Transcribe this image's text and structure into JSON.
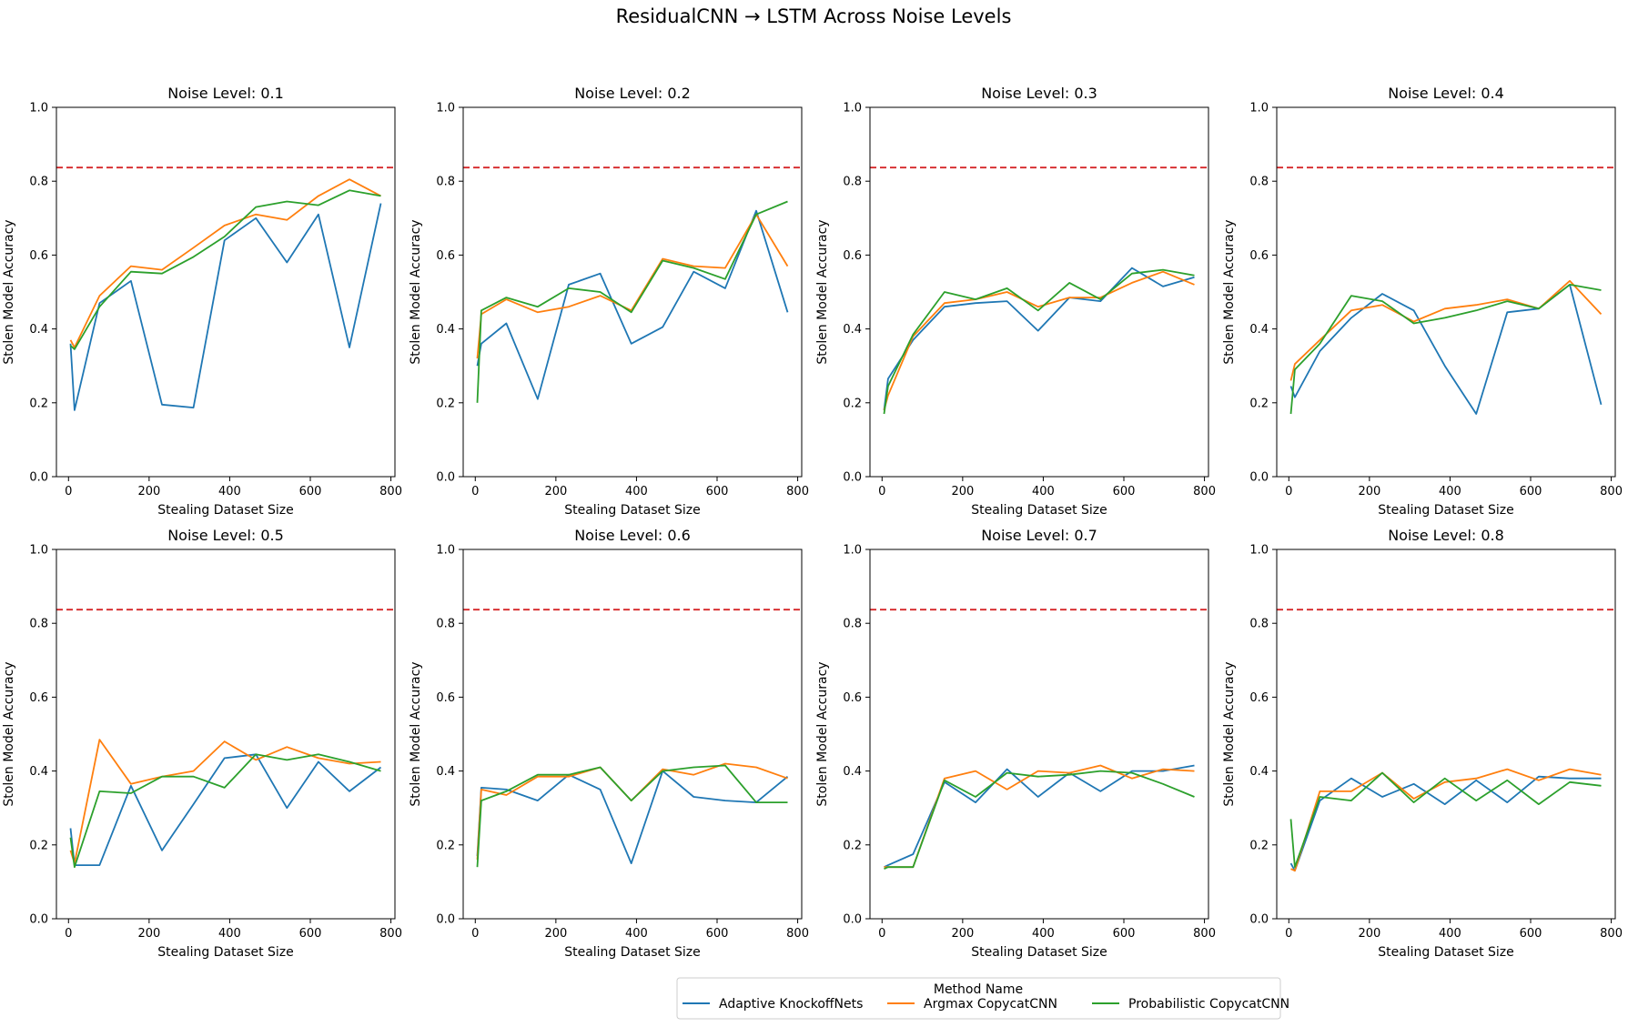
{
  "figure": {
    "title": "ResidualCNN → LSTM Across Noise Levels",
    "legend_title": "Method Name",
    "legend_position": "bottom-center"
  },
  "colors": {
    "Adaptive KnockoffNets": "#1f77b4",
    "Argmax CopycatCNN": "#ff7f0e",
    "Probabilistic CopycatCNN": "#2ca02c",
    "reference_line": "#d62728"
  },
  "chart_data": [
    {
      "type": "line",
      "title": "Noise Level: 0.1",
      "xlabel": "Stealing Dataset Size",
      "ylabel": "Stolen Model Accuracy",
      "xlim": [
        -30,
        810
      ],
      "ylim": [
        0.0,
        1.0
      ],
      "xticks": [
        0,
        200,
        400,
        600,
        800
      ],
      "yticks": [
        0.0,
        0.2,
        0.4,
        0.6,
        0.8,
        1.0
      ],
      "grid": false,
      "reference_line": 0.837,
      "x": [
        5,
        15,
        77,
        155,
        232,
        310,
        387,
        465,
        542,
        620,
        697,
        775
      ],
      "series": [
        {
          "name": "Adaptive KnockoffNets",
          "values": [
            0.36,
            0.18,
            0.47,
            0.53,
            0.195,
            0.187,
            0.64,
            0.7,
            0.58,
            0.71,
            0.35,
            0.74
          ]
        },
        {
          "name": "Argmax CopycatCNN",
          "values": [
            0.37,
            0.35,
            0.49,
            0.57,
            0.56,
            0.62,
            0.68,
            0.71,
            0.695,
            0.76,
            0.805,
            0.76
          ]
        },
        {
          "name": "Probabilistic CopycatCNN",
          "values": [
            0.355,
            0.345,
            0.46,
            0.555,
            0.55,
            0.595,
            0.65,
            0.73,
            0.745,
            0.735,
            0.775,
            0.76
          ]
        }
      ]
    },
    {
      "type": "line",
      "title": "Noise Level: 0.2",
      "xlabel": "Stealing Dataset Size",
      "ylabel": "Stolen Model Accuracy",
      "xlim": [
        -30,
        810
      ],
      "ylim": [
        0.0,
        1.0
      ],
      "xticks": [
        0,
        200,
        400,
        600,
        800
      ],
      "yticks": [
        0.0,
        0.2,
        0.4,
        0.6,
        0.8,
        1.0
      ],
      "grid": false,
      "reference_line": 0.837,
      "x": [
        5,
        15,
        77,
        155,
        232,
        310,
        387,
        465,
        542,
        620,
        697,
        775
      ],
      "series": [
        {
          "name": "Adaptive KnockoffNets",
          "values": [
            0.3,
            0.36,
            0.415,
            0.21,
            0.52,
            0.55,
            0.36,
            0.405,
            0.555,
            0.51,
            0.72,
            0.445
          ]
        },
        {
          "name": "Argmax CopycatCNN",
          "values": [
            0.32,
            0.44,
            0.48,
            0.445,
            0.46,
            0.49,
            0.45,
            0.59,
            0.57,
            0.565,
            0.71,
            0.57
          ]
        },
        {
          "name": "Probabilistic CopycatCNN",
          "values": [
            0.2,
            0.45,
            0.485,
            0.46,
            0.51,
            0.5,
            0.445,
            0.585,
            0.565,
            0.535,
            0.71,
            0.745
          ]
        }
      ]
    },
    {
      "type": "line",
      "title": "Noise Level: 0.3",
      "xlabel": "Stealing Dataset Size",
      "ylabel": "Stolen Model Accuracy",
      "xlim": [
        -30,
        810
      ],
      "ylim": [
        0.0,
        1.0
      ],
      "xticks": [
        0,
        200,
        400,
        600,
        800
      ],
      "yticks": [
        0.0,
        0.2,
        0.4,
        0.6,
        0.8,
        1.0
      ],
      "grid": false,
      "reference_line": 0.837,
      "x": [
        5,
        15,
        77,
        155,
        232,
        310,
        387,
        465,
        542,
        620,
        697,
        775
      ],
      "series": [
        {
          "name": "Adaptive KnockoffNets",
          "values": [
            0.18,
            0.265,
            0.37,
            0.46,
            0.47,
            0.475,
            0.395,
            0.485,
            0.475,
            0.565,
            0.515,
            0.54
          ]
        },
        {
          "name": "Argmax CopycatCNN",
          "values": [
            0.18,
            0.22,
            0.38,
            0.47,
            0.48,
            0.5,
            0.46,
            0.485,
            0.485,
            0.525,
            0.555,
            0.52
          ]
        },
        {
          "name": "Probabilistic CopycatCNN",
          "values": [
            0.17,
            0.245,
            0.385,
            0.5,
            0.48,
            0.51,
            0.45,
            0.525,
            0.48,
            0.55,
            0.56,
            0.545
          ]
        }
      ]
    },
    {
      "type": "line",
      "title": "Noise Level: 0.4",
      "xlabel": "Stealing Dataset Size",
      "ylabel": "Stolen Model Accuracy",
      "xlim": [
        -30,
        810
      ],
      "ylim": [
        0.0,
        1.0
      ],
      "xticks": [
        0,
        200,
        400,
        600,
        800
      ],
      "yticks": [
        0.0,
        0.2,
        0.4,
        0.6,
        0.8,
        1.0
      ],
      "grid": false,
      "reference_line": 0.837,
      "x": [
        5,
        15,
        77,
        155,
        232,
        310,
        387,
        465,
        542,
        620,
        697,
        775
      ],
      "series": [
        {
          "name": "Adaptive KnockoffNets",
          "values": [
            0.245,
            0.215,
            0.34,
            0.43,
            0.495,
            0.45,
            0.3,
            0.17,
            0.445,
            0.455,
            0.52,
            0.195
          ]
        },
        {
          "name": "Argmax CopycatCNN",
          "values": [
            0.26,
            0.305,
            0.37,
            0.45,
            0.465,
            0.42,
            0.455,
            0.465,
            0.48,
            0.455,
            0.53,
            0.44
          ]
        },
        {
          "name": "Probabilistic CopycatCNN",
          "values": [
            0.17,
            0.29,
            0.36,
            0.49,
            0.475,
            0.415,
            0.43,
            0.45,
            0.475,
            0.455,
            0.52,
            0.505
          ]
        }
      ]
    },
    {
      "type": "line",
      "title": "Noise Level: 0.5",
      "xlabel": "Stealing Dataset Size",
      "ylabel": "Stolen Model Accuracy",
      "xlim": [
        -30,
        810
      ],
      "ylim": [
        0.0,
        1.0
      ],
      "xticks": [
        0,
        200,
        400,
        600,
        800
      ],
      "yticks": [
        0.0,
        0.2,
        0.4,
        0.6,
        0.8,
        1.0
      ],
      "grid": false,
      "reference_line": 0.837,
      "x": [
        5,
        15,
        77,
        155,
        232,
        310,
        387,
        465,
        542,
        620,
        697,
        775
      ],
      "series": [
        {
          "name": "Adaptive KnockoffNets",
          "values": [
            0.245,
            0.145,
            0.145,
            0.36,
            0.185,
            0.31,
            0.435,
            0.445,
            0.3,
            0.425,
            0.345,
            0.41
          ]
        },
        {
          "name": "Argmax CopycatCNN",
          "values": [
            0.185,
            0.15,
            0.485,
            0.365,
            0.385,
            0.4,
            0.48,
            0.43,
            0.465,
            0.435,
            0.42,
            0.425
          ]
        },
        {
          "name": "Probabilistic CopycatCNN",
          "values": [
            0.22,
            0.14,
            0.345,
            0.34,
            0.385,
            0.385,
            0.355,
            0.445,
            0.43,
            0.445,
            0.425,
            0.4
          ]
        }
      ]
    },
    {
      "type": "line",
      "title": "Noise Level: 0.6",
      "xlabel": "Stealing Dataset Size",
      "ylabel": "Stolen Model Accuracy",
      "xlim": [
        -30,
        810
      ],
      "ylim": [
        0.0,
        1.0
      ],
      "xticks": [
        0,
        200,
        400,
        600,
        800
      ],
      "yticks": [
        0.0,
        0.2,
        0.4,
        0.6,
        0.8,
        1.0
      ],
      "grid": false,
      "reference_line": 0.837,
      "x": [
        5,
        15,
        77,
        155,
        232,
        310,
        387,
        465,
        542,
        620,
        697,
        775
      ],
      "series": [
        {
          "name": "Adaptive KnockoffNets",
          "values": [
            0.17,
            0.355,
            0.35,
            0.32,
            0.39,
            0.35,
            0.15,
            0.4,
            0.33,
            0.32,
            0.315,
            0.385
          ]
        },
        {
          "name": "Argmax CopycatCNN",
          "values": [
            0.16,
            0.35,
            0.335,
            0.385,
            0.385,
            0.41,
            0.32,
            0.405,
            0.39,
            0.42,
            0.41,
            0.38
          ]
        },
        {
          "name": "Probabilistic CopycatCNN",
          "values": [
            0.14,
            0.32,
            0.345,
            0.39,
            0.39,
            0.41,
            0.32,
            0.4,
            0.41,
            0.415,
            0.315,
            0.315
          ]
        }
      ]
    },
    {
      "type": "line",
      "title": "Noise Level: 0.7",
      "xlabel": "Stealing Dataset Size",
      "ylabel": "Stolen Model Accuracy",
      "xlim": [
        -30,
        810
      ],
      "ylim": [
        0.0,
        1.0
      ],
      "xticks": [
        0,
        200,
        400,
        600,
        800
      ],
      "yticks": [
        0.0,
        0.2,
        0.4,
        0.6,
        0.8,
        1.0
      ],
      "grid": false,
      "reference_line": 0.837,
      "x": [
        5,
        15,
        77,
        155,
        232,
        310,
        387,
        465,
        542,
        620,
        697,
        775
      ],
      "series": [
        {
          "name": "Adaptive KnockoffNets",
          "values": [
            0.14,
            0.145,
            0.175,
            0.37,
            0.315,
            0.405,
            0.33,
            0.395,
            0.345,
            0.4,
            0.4,
            0.415
          ]
        },
        {
          "name": "Argmax CopycatCNN",
          "values": [
            0.14,
            0.14,
            0.14,
            0.38,
            0.4,
            0.35,
            0.4,
            0.395,
            0.415,
            0.38,
            0.405,
            0.4
          ]
        },
        {
          "name": "Probabilistic CopycatCNN",
          "values": [
            0.135,
            0.14,
            0.14,
            0.375,
            0.33,
            0.395,
            0.385,
            0.39,
            0.4,
            0.395,
            0.365,
            0.33
          ]
        }
      ]
    },
    {
      "type": "line",
      "title": "Noise Level: 0.8",
      "xlabel": "Stealing Dataset Size",
      "ylabel": "Stolen Model Accuracy",
      "xlim": [
        -30,
        810
      ],
      "ylim": [
        0.0,
        1.0
      ],
      "xticks": [
        0,
        200,
        400,
        600,
        800
      ],
      "yticks": [
        0.0,
        0.2,
        0.4,
        0.6,
        0.8,
        1.0
      ],
      "grid": false,
      "reference_line": 0.837,
      "x": [
        5,
        15,
        77,
        155,
        232,
        310,
        387,
        465,
        542,
        620,
        697,
        775
      ],
      "series": [
        {
          "name": "Adaptive KnockoffNets",
          "values": [
            0.15,
            0.13,
            0.32,
            0.38,
            0.33,
            0.365,
            0.31,
            0.375,
            0.315,
            0.385,
            0.38,
            0.38
          ]
        },
        {
          "name": "Argmax CopycatCNN",
          "values": [
            0.135,
            0.13,
            0.345,
            0.345,
            0.395,
            0.325,
            0.37,
            0.38,
            0.405,
            0.375,
            0.405,
            0.39
          ]
        },
        {
          "name": "Probabilistic CopycatCNN",
          "values": [
            0.27,
            0.14,
            0.33,
            0.32,
            0.395,
            0.315,
            0.38,
            0.32,
            0.375,
            0.31,
            0.37,
            0.36
          ]
        }
      ]
    }
  ]
}
